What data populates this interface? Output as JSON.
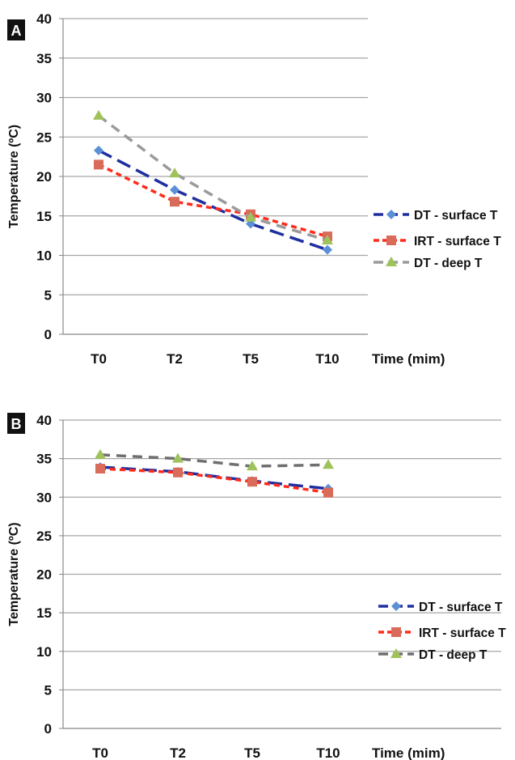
{
  "chart_data": [
    {
      "panel_label": "A",
      "type": "line",
      "categories": [
        "T0",
        "T2",
        "T5",
        "T10"
      ],
      "ylabel": "Temperature (ºC)",
      "xlabel": "Time (mim)",
      "ylim": [
        0,
        40
      ],
      "yticks": [
        0,
        5,
        10,
        15,
        20,
        25,
        30,
        35,
        40
      ],
      "grid": true,
      "legend_position": "right",
      "series": [
        {
          "name": "DT - surface T",
          "values": [
            23.3,
            18.3,
            14.0,
            10.7
          ],
          "color": "#1f2fa0",
          "marker": "diamond",
          "marker_color": "#5b8fd6",
          "dash": "18 8"
        },
        {
          "name": "IRT - surface T",
          "values": [
            21.5,
            16.8,
            15.2,
            12.4
          ],
          "color": "#ff2a1a",
          "marker": "square",
          "marker_color": "#d96b5b",
          "dash": "7 5"
        },
        {
          "name": "DT - deep T",
          "values": [
            27.7,
            20.4,
            14.8,
            11.9
          ],
          "color": "#9a9a9a",
          "marker": "triangle",
          "marker_color": "#9fc25a",
          "dash": "12 8"
        }
      ]
    },
    {
      "panel_label": "B",
      "type": "line",
      "categories": [
        "T0",
        "T2",
        "T5",
        "T10"
      ],
      "ylabel": "Temperature (ºC)",
      "xlabel": "Time (mim)",
      "ylim": [
        0,
        40
      ],
      "yticks": [
        0,
        5,
        10,
        15,
        20,
        25,
        30,
        35,
        40
      ],
      "grid": true,
      "legend_position": "right",
      "series": [
        {
          "name": "DT - surface T",
          "values": [
            33.9,
            33.3,
            32.1,
            31.1
          ],
          "color": "#1f2fa0",
          "marker": "diamond",
          "marker_color": "#5b8fd6",
          "dash": "18 8"
        },
        {
          "name": "IRT - surface T",
          "values": [
            33.7,
            33.2,
            32.0,
            30.6
          ],
          "color": "#ff2a1a",
          "marker": "square",
          "marker_color": "#d96b5b",
          "dash": "7 5"
        },
        {
          "name": "DT - deep T",
          "values": [
            35.5,
            35.0,
            34.0,
            34.2
          ],
          "color": "#6f6f6f",
          "marker": "triangle",
          "marker_color": "#9fc25a",
          "dash": "12 8"
        }
      ]
    }
  ]
}
